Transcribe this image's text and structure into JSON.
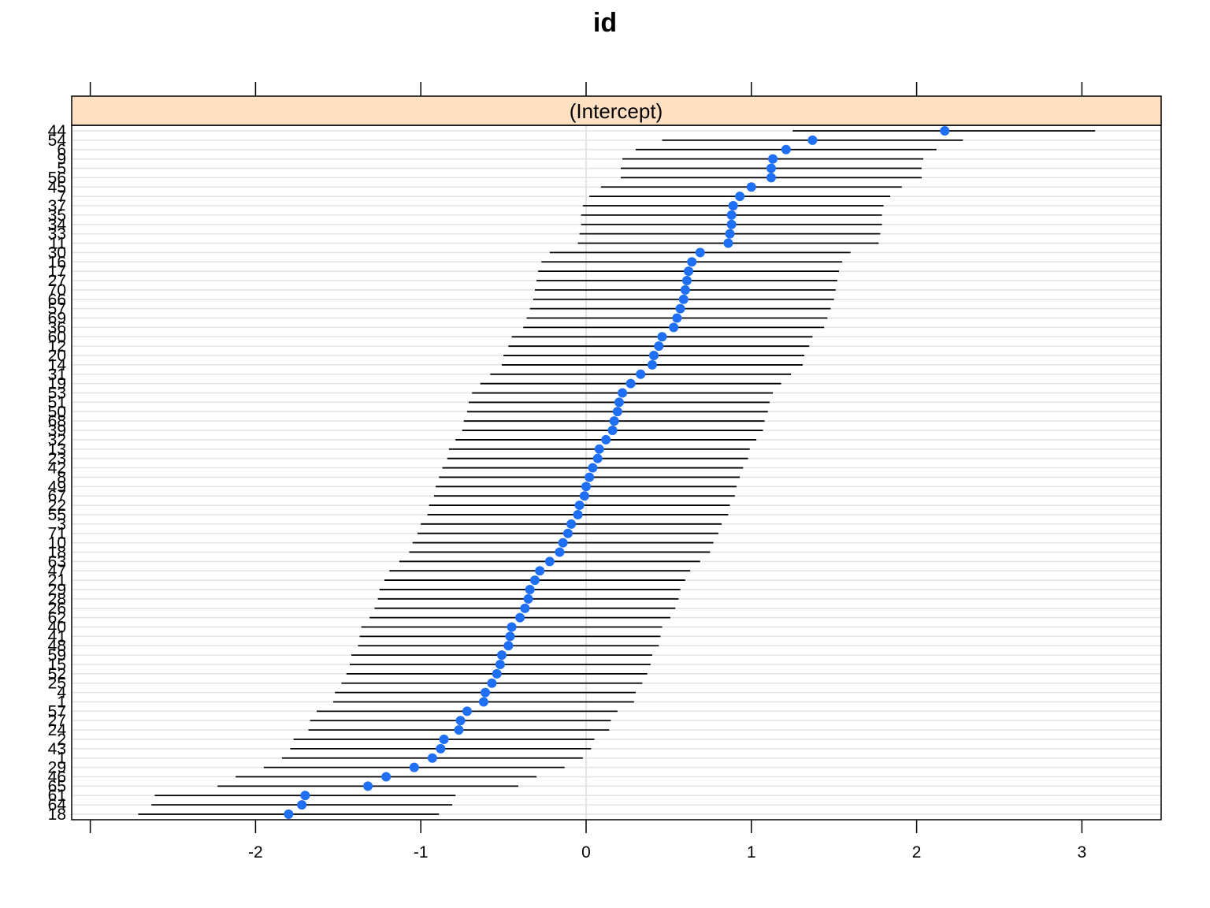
{
  "chart_data": {
    "type": "dotplot",
    "title": "id",
    "panel_label": "(Intercept)",
    "xlim": [
      -3.0,
      3.5
    ],
    "x_ticks": [
      -2,
      -1,
      0,
      1,
      2,
      3
    ],
    "x_tick_labels": [
      "-2",
      "-1",
      "0",
      "1",
      "2",
      "3"
    ],
    "grid": true,
    "colors": {
      "point": "#1f6ff5",
      "strip_background": "#ffe0c2",
      "interval": "#000000",
      "gridline": "#e3e3e3",
      "zero_line": "#e3e3e3"
    },
    "rows": [
      {
        "id": "44",
        "estimate": 2.17,
        "lower": 1.25,
        "upper": 3.08
      },
      {
        "id": "54",
        "estimate": 1.37,
        "lower": 0.46,
        "upper": 2.28
      },
      {
        "id": "6",
        "estimate": 1.21,
        "lower": 0.3,
        "upper": 2.12
      },
      {
        "id": "9",
        "estimate": 1.13,
        "lower": 0.22,
        "upper": 2.04
      },
      {
        "id": "5",
        "estimate": 1.12,
        "lower": 0.21,
        "upper": 2.03
      },
      {
        "id": "56",
        "estimate": 1.12,
        "lower": 0.21,
        "upper": 2.03
      },
      {
        "id": "45",
        "estimate": 1.0,
        "lower": 0.09,
        "upper": 1.91
      },
      {
        "id": "7",
        "estimate": 0.93,
        "lower": 0.02,
        "upper": 1.84
      },
      {
        "id": "37",
        "estimate": 0.89,
        "lower": -0.02,
        "upper": 1.8
      },
      {
        "id": "35",
        "estimate": 0.88,
        "lower": -0.03,
        "upper": 1.79
      },
      {
        "id": "34",
        "estimate": 0.88,
        "lower": -0.03,
        "upper": 1.79
      },
      {
        "id": "33",
        "estimate": 0.87,
        "lower": -0.04,
        "upper": 1.78
      },
      {
        "id": "11",
        "estimate": 0.86,
        "lower": -0.05,
        "upper": 1.77
      },
      {
        "id": "30",
        "estimate": 0.69,
        "lower": -0.22,
        "upper": 1.6
      },
      {
        "id": "16",
        "estimate": 0.64,
        "lower": -0.27,
        "upper": 1.55
      },
      {
        "id": "17",
        "estimate": 0.62,
        "lower": -0.29,
        "upper": 1.53
      },
      {
        "id": "27",
        "estimate": 0.61,
        "lower": -0.3,
        "upper": 1.52
      },
      {
        "id": "70",
        "estimate": 0.6,
        "lower": -0.31,
        "upper": 1.51
      },
      {
        "id": "66",
        "estimate": 0.59,
        "lower": -0.32,
        "upper": 1.5
      },
      {
        "id": "57",
        "estimate": 0.57,
        "lower": -0.34,
        "upper": 1.48
      },
      {
        "id": "69",
        "estimate": 0.55,
        "lower": -0.36,
        "upper": 1.46
      },
      {
        "id": "36",
        "estimate": 0.53,
        "lower": -0.38,
        "upper": 1.44
      },
      {
        "id": "60",
        "estimate": 0.46,
        "lower": -0.45,
        "upper": 1.37
      },
      {
        "id": "12",
        "estimate": 0.44,
        "lower": -0.47,
        "upper": 1.35
      },
      {
        "id": "20",
        "estimate": 0.41,
        "lower": -0.5,
        "upper": 1.32
      },
      {
        "id": "14",
        "estimate": 0.4,
        "lower": -0.51,
        "upper": 1.31
      },
      {
        "id": "31",
        "estimate": 0.33,
        "lower": -0.58,
        "upper": 1.24
      },
      {
        "id": "19",
        "estimate": 0.27,
        "lower": -0.64,
        "upper": 1.18
      },
      {
        "id": "53",
        "estimate": 0.22,
        "lower": -0.69,
        "upper": 1.13
      },
      {
        "id": "51",
        "estimate": 0.2,
        "lower": -0.71,
        "upper": 1.11
      },
      {
        "id": "50",
        "estimate": 0.19,
        "lower": -0.72,
        "upper": 1.1
      },
      {
        "id": "68",
        "estimate": 0.17,
        "lower": -0.74,
        "upper": 1.08
      },
      {
        "id": "39",
        "estimate": 0.16,
        "lower": -0.75,
        "upper": 1.07
      },
      {
        "id": "32",
        "estimate": 0.12,
        "lower": -0.79,
        "upper": 1.03
      },
      {
        "id": "13",
        "estimate": 0.08,
        "lower": -0.83,
        "upper": 0.99
      },
      {
        "id": "23",
        "estimate": 0.07,
        "lower": -0.84,
        "upper": 0.98
      },
      {
        "id": "42",
        "estimate": 0.04,
        "lower": -0.87,
        "upper": 0.95
      },
      {
        "id": "8",
        "estimate": 0.02,
        "lower": -0.89,
        "upper": 0.93
      },
      {
        "id": "49",
        "estimate": 0.0,
        "lower": -0.91,
        "upper": 0.91
      },
      {
        "id": "67",
        "estimate": -0.01,
        "lower": -0.92,
        "upper": 0.9
      },
      {
        "id": "22",
        "estimate": -0.04,
        "lower": -0.95,
        "upper": 0.87
      },
      {
        "id": "55",
        "estimate": -0.05,
        "lower": -0.96,
        "upper": 0.86
      },
      {
        "id": "3",
        "estimate": -0.09,
        "lower": -1.0,
        "upper": 0.82
      },
      {
        "id": "71",
        "estimate": -0.11,
        "lower": -1.02,
        "upper": 0.8
      },
      {
        "id": "10",
        "estimate": -0.14,
        "lower": -1.05,
        "upper": 0.77
      },
      {
        "id": "18",
        "estimate": -0.16,
        "lower": -1.07,
        "upper": 0.75
      },
      {
        "id": "63",
        "estimate": -0.22,
        "lower": -1.13,
        "upper": 0.69
      },
      {
        "id": "47",
        "estimate": -0.28,
        "lower": -1.19,
        "upper": 0.63
      },
      {
        "id": "21",
        "estimate": -0.31,
        "lower": -1.22,
        "upper": 0.6
      },
      {
        "id": "29",
        "estimate": -0.34,
        "lower": -1.25,
        "upper": 0.57
      },
      {
        "id": "28",
        "estimate": -0.35,
        "lower": -1.26,
        "upper": 0.56
      },
      {
        "id": "26",
        "estimate": -0.37,
        "lower": -1.28,
        "upper": 0.54
      },
      {
        "id": "62",
        "estimate": -0.4,
        "lower": -1.31,
        "upper": 0.51
      },
      {
        "id": "40",
        "estimate": -0.45,
        "lower": -1.36,
        "upper": 0.46
      },
      {
        "id": "41",
        "estimate": -0.46,
        "lower": -1.37,
        "upper": 0.45
      },
      {
        "id": "48",
        "estimate": -0.47,
        "lower": -1.38,
        "upper": 0.44
      },
      {
        "id": "59",
        "estimate": -0.51,
        "lower": -1.42,
        "upper": 0.4
      },
      {
        "id": "15",
        "estimate": -0.52,
        "lower": -1.43,
        "upper": 0.39
      },
      {
        "id": "52",
        "estimate": -0.54,
        "lower": -1.45,
        "upper": 0.37
      },
      {
        "id": "25",
        "estimate": -0.57,
        "lower": -1.48,
        "upper": 0.34
      },
      {
        "id": "4",
        "estimate": -0.61,
        "lower": -1.52,
        "upper": 0.3
      },
      {
        "id": "1",
        "estimate": -0.62,
        "lower": -1.53,
        "upper": 0.29
      },
      {
        "id": "57",
        "estimate": -0.72,
        "lower": -1.63,
        "upper": 0.19
      },
      {
        "id": "27",
        "estimate": -0.76,
        "lower": -1.67,
        "upper": 0.15
      },
      {
        "id": "24",
        "estimate": -0.77,
        "lower": -1.68,
        "upper": 0.14
      },
      {
        "id": "2",
        "estimate": -0.86,
        "lower": -1.77,
        "upper": 0.05
      },
      {
        "id": "43",
        "estimate": -0.88,
        "lower": -1.79,
        "upper": 0.03
      },
      {
        "id": "1",
        "estimate": -0.93,
        "lower": -1.84,
        "upper": -0.02
      },
      {
        "id": "29",
        "estimate": -1.04,
        "lower": -1.95,
        "upper": -0.13
      },
      {
        "id": "46",
        "estimate": -1.21,
        "lower": -2.12,
        "upper": -0.3
      },
      {
        "id": "65",
        "estimate": -1.32,
        "lower": -2.23,
        "upper": -0.41
      },
      {
        "id": "61",
        "estimate": -1.7,
        "lower": -2.61,
        "upper": -0.79
      },
      {
        "id": "64",
        "estimate": -1.72,
        "lower": -2.63,
        "upper": -0.81
      },
      {
        "id": "18",
        "estimate": -1.8,
        "lower": -2.71,
        "upper": -0.89
      }
    ]
  }
}
